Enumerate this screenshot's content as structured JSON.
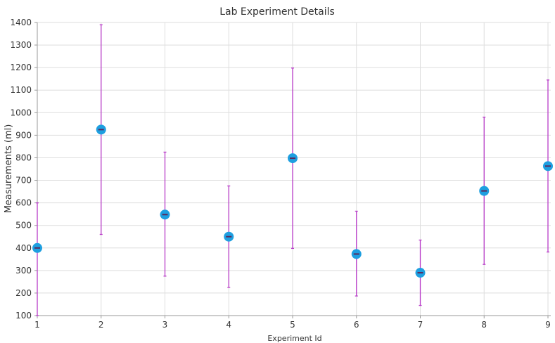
{
  "chart_data": {
    "type": "scatter",
    "title": "Lab Experiment Details",
    "xlabel": "Experiment Id",
    "ylabel": "Measurements (ml)",
    "xlim": [
      1,
      9
    ],
    "ylim": [
      100,
      1400
    ],
    "x_ticks": [
      "1",
      "2",
      "3",
      "4",
      "5",
      "6",
      "7",
      "8",
      "9"
    ],
    "y_ticks": [
      "100",
      "200",
      "300",
      "400",
      "500",
      "600",
      "700",
      "800",
      "900",
      "1000",
      "1100",
      "1200",
      "1300",
      "1400"
    ],
    "grid": true,
    "series": [
      {
        "points": [
          {
            "x": 1,
            "y": 400,
            "y_low": 100,
            "y_high": 600
          },
          {
            "x": 2,
            "y": 925,
            "y_low": 460,
            "y_high": 1390
          },
          {
            "x": 3,
            "y": 548,
            "y_low": 275,
            "y_high": 825
          },
          {
            "x": 4,
            "y": 450,
            "y_low": 225,
            "y_high": 675
          },
          {
            "x": 5,
            "y": 798,
            "y_low": 398,
            "y_high": 1198
          },
          {
            "x": 6,
            "y": 373,
            "y_low": 187,
            "y_high": 563
          },
          {
            "x": 7,
            "y": 290,
            "y_low": 145,
            "y_high": 435
          },
          {
            "x": 8,
            "y": 653,
            "y_low": 327,
            "y_high": 980
          },
          {
            "x": 9,
            "y": 763,
            "y_low": 382,
            "y_high": 1145
          }
        ]
      }
    ],
    "colors": {
      "marker": "#1e9fe0",
      "errorbar": "#b83cc8",
      "marker_center": "#5a2a5e"
    }
  }
}
